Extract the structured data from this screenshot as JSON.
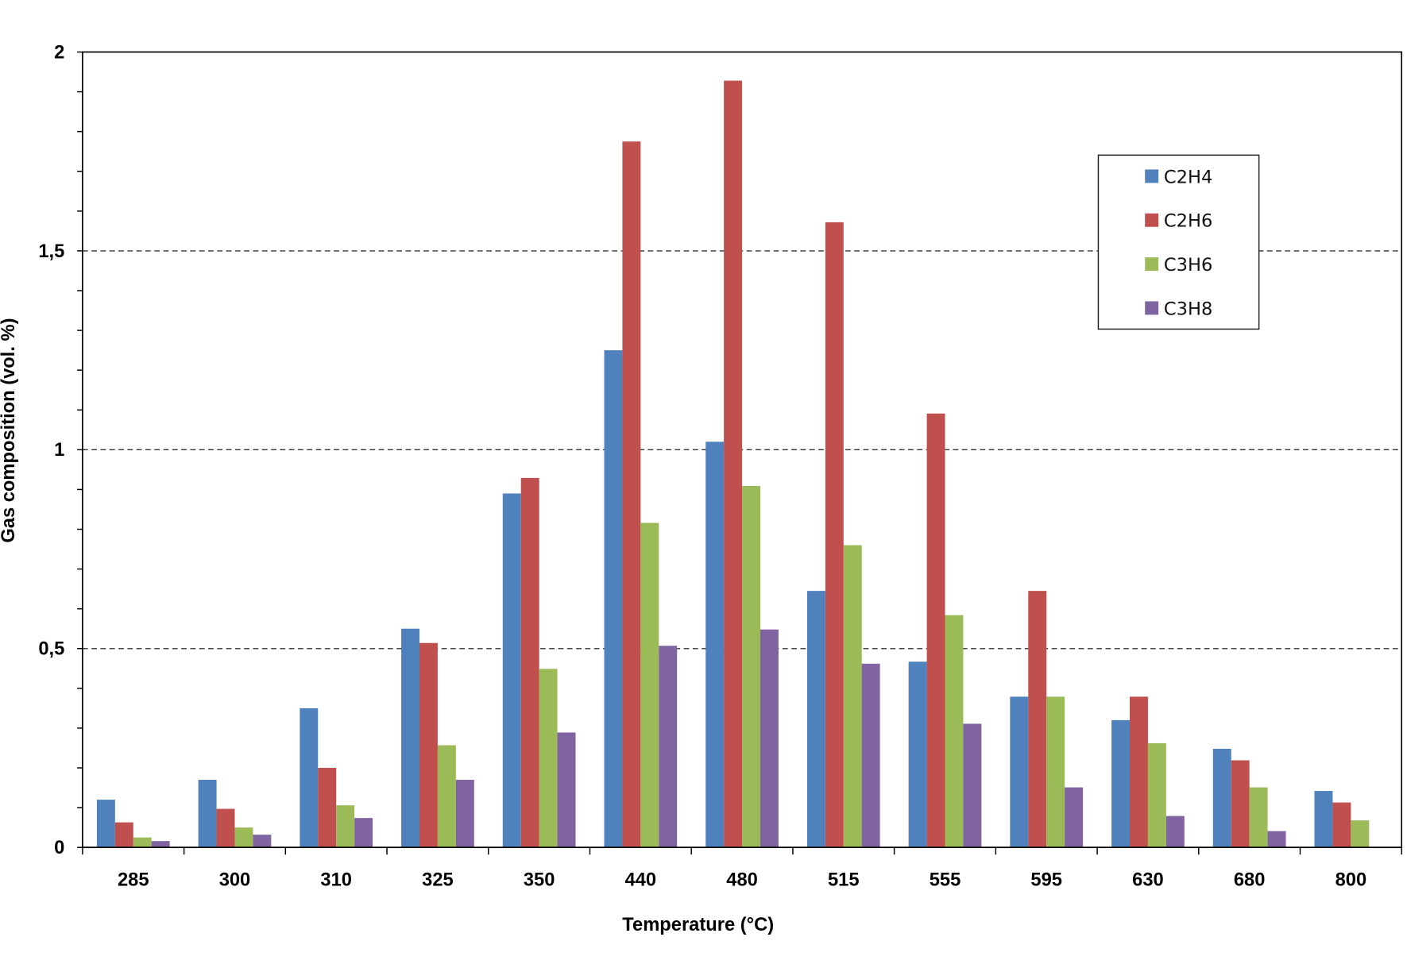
{
  "chart_data": {
    "type": "bar",
    "title": "",
    "xlabel": "Temperature (°C)",
    "ylabel": "Gas composition (vol. %)",
    "ylim": [
      0,
      2
    ],
    "yticks": [
      0,
      0.5,
      1,
      1.5,
      2
    ],
    "ytick_labels": [
      "0",
      "0,5",
      "1",
      "1,5",
      "2"
    ],
    "grid": "horizontal dashed at major ticks",
    "legend_position": "top-right",
    "categories": [
      "285",
      "300",
      "310",
      "325",
      "350",
      "440",
      "480",
      "515",
      "555",
      "595",
      "630",
      "680",
      "800"
    ],
    "series": [
      {
        "name": "C2H4",
        "color": "#4f81bd",
        "values": [
          0.12,
          0.17,
          0.35,
          0.55,
          0.89,
          1.25,
          1.02,
          0.645,
          0.467,
          0.379,
          0.32,
          0.248,
          0.142
        ]
      },
      {
        "name": "C2H6",
        "color": "#c0504d",
        "values": [
          0.063,
          0.097,
          0.2,
          0.514,
          0.929,
          1.775,
          1.928,
          1.572,
          1.091,
          0.645,
          0.379,
          0.219,
          0.113
        ]
      },
      {
        "name": "C3H6",
        "color": "#9bbb59",
        "values": [
          0.025,
          0.05,
          0.106,
          0.257,
          0.449,
          0.816,
          0.909,
          0.76,
          0.584,
          0.379,
          0.262,
          0.151,
          0.068
        ]
      },
      {
        "name": "C3H8",
        "color": "#8064a2",
        "values": [
          0.016,
          0.032,
          0.074,
          0.17,
          0.289,
          0.507,
          0.548,
          0.462,
          0.311,
          0.151,
          0.079,
          0.041,
          0
        ]
      }
    ]
  }
}
